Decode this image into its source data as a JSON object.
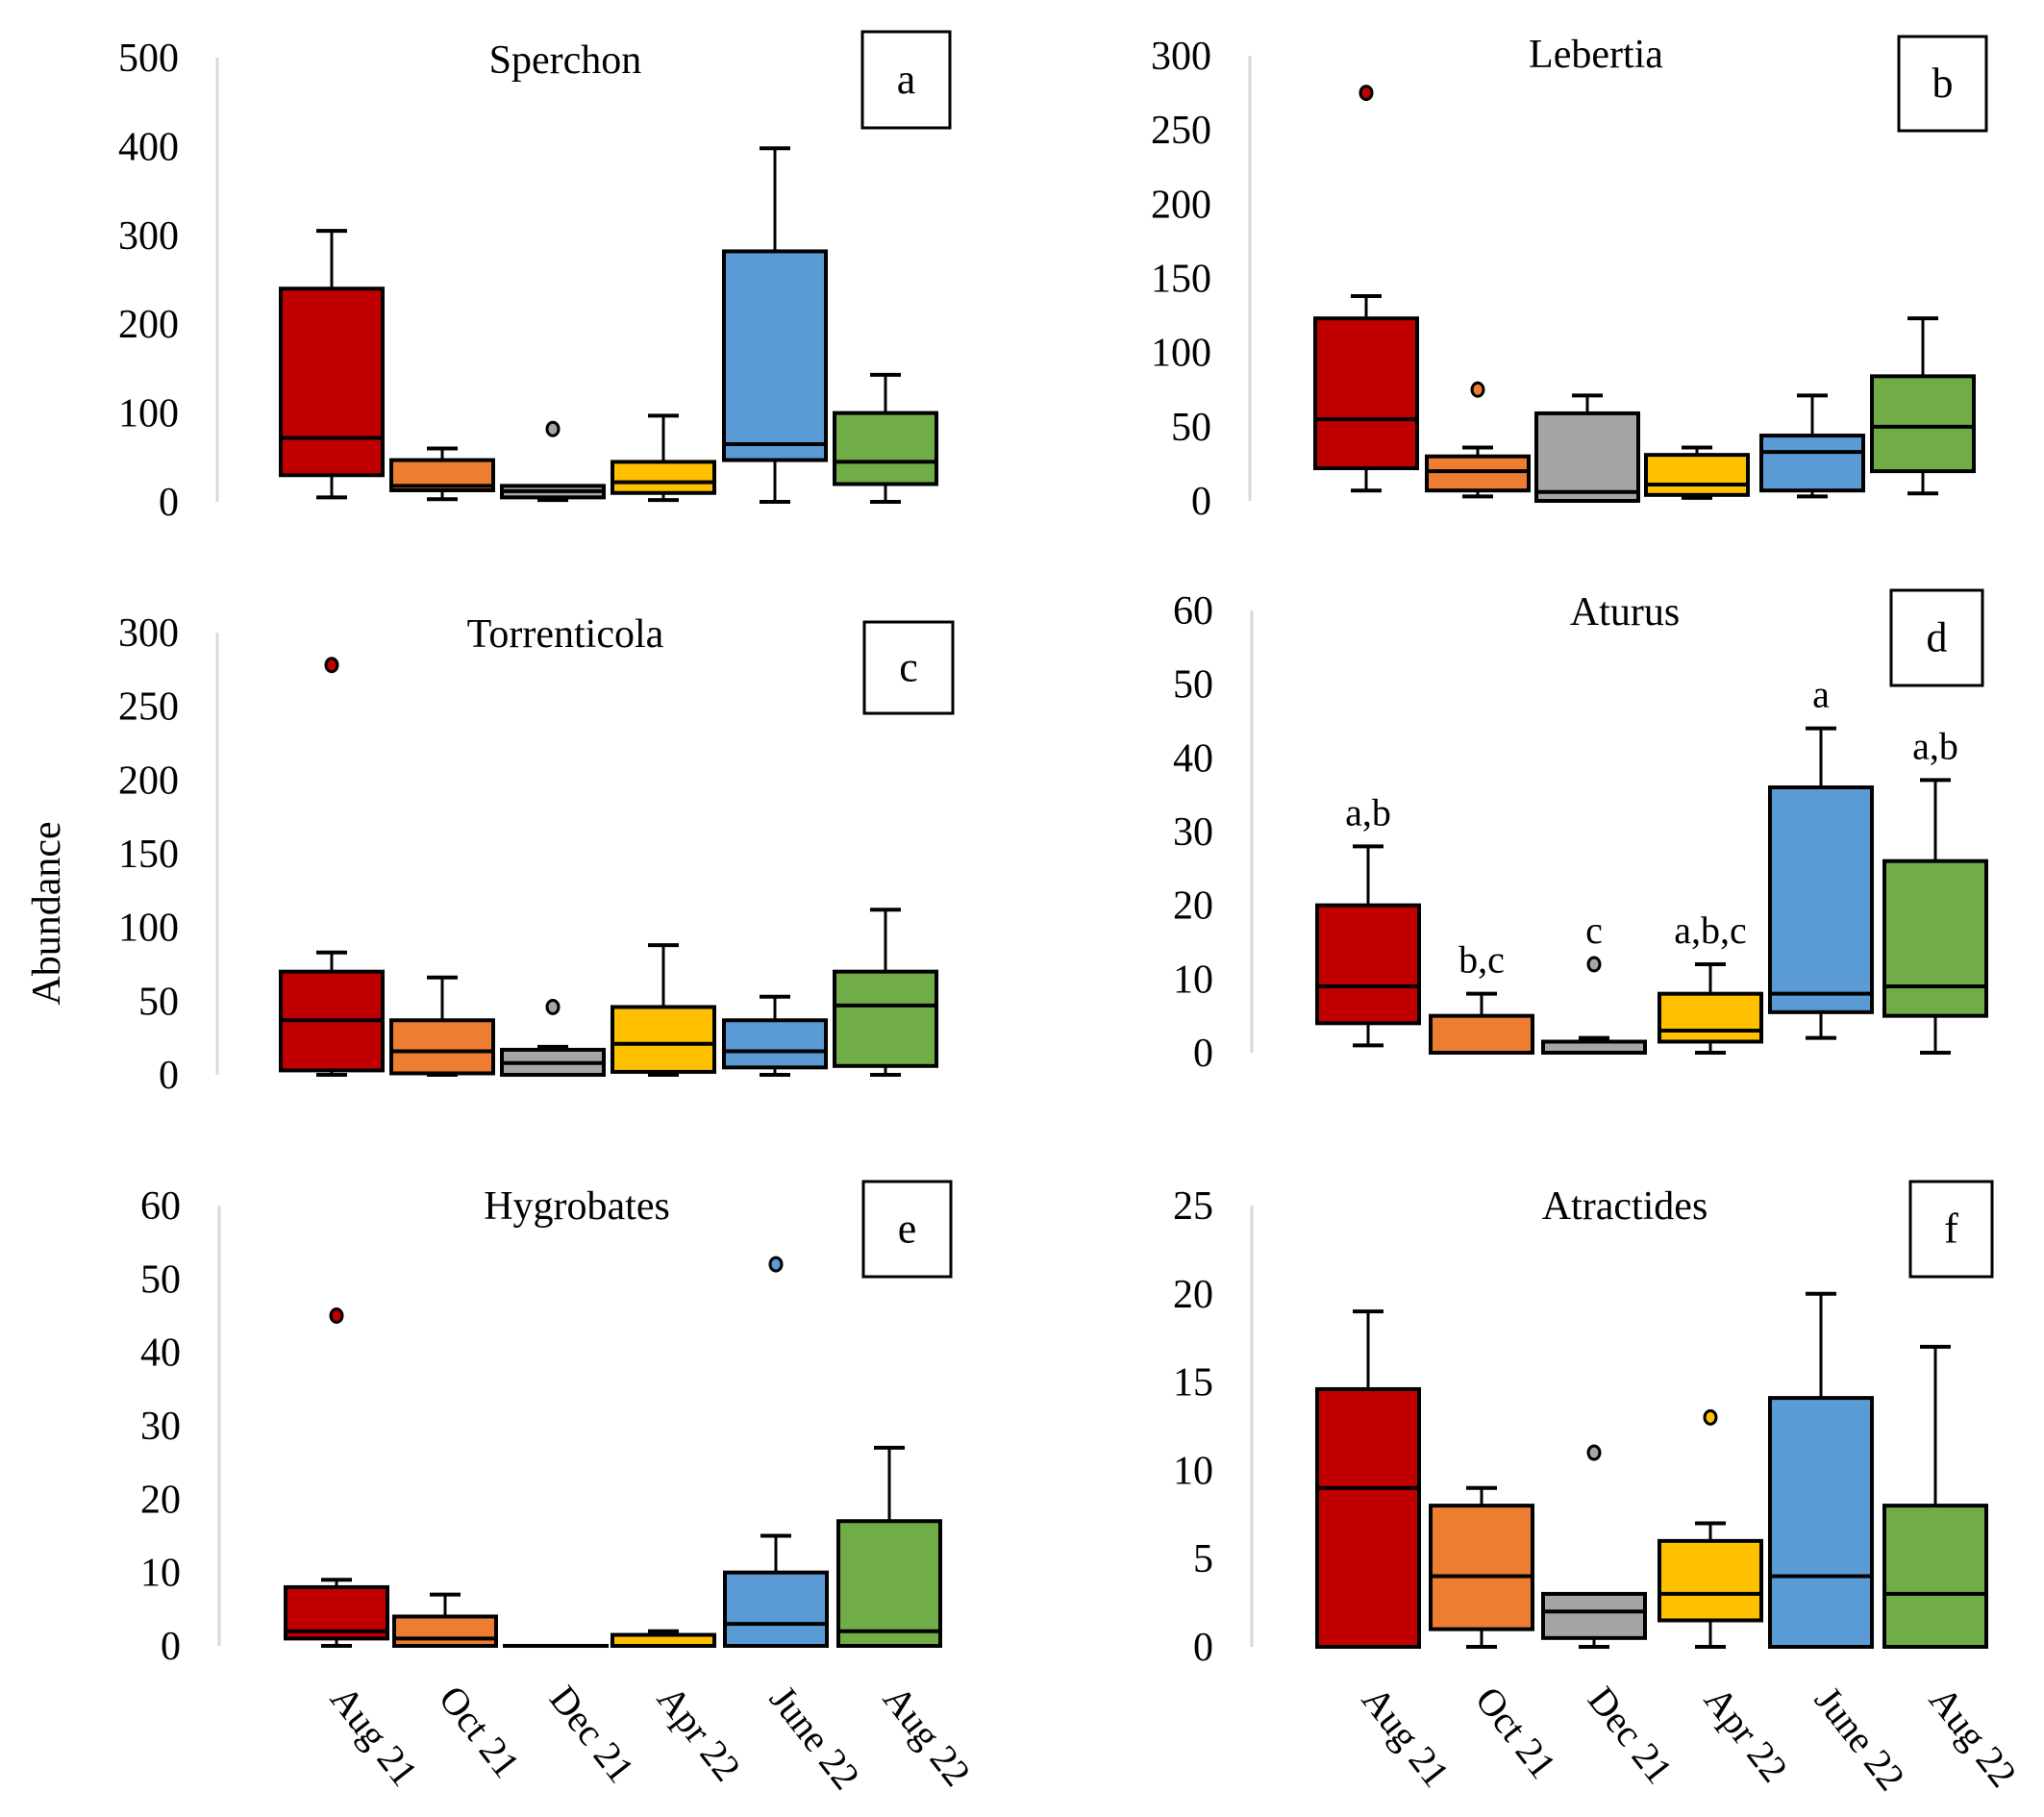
{
  "figure": {
    "ylabel": "Abundance",
    "categories": [
      "Aug 21",
      "Oct 21",
      "Dec 21",
      "Apr 22",
      "June 22",
      "Aug 22"
    ],
    "colors": [
      "#C00000",
      "#ED7D31",
      "#A5A5A5",
      "#FFC000",
      "#5B9BD5",
      "#70AD47"
    ],
    "axis_color": "#D9D9D9"
  },
  "chart_data": [
    {
      "type": "box",
      "panel": "a",
      "title": "Sperchon",
      "ylim": [
        0,
        500
      ],
      "yticks": [
        0,
        100,
        200,
        300,
        400,
        500
      ],
      "categories": [
        "Aug 21",
        "Oct 21",
        "Dec 21",
        "Apr 22",
        "June 22",
        "Aug 22"
      ],
      "boxes": [
        {
          "min": 5,
          "q1": 30,
          "median": 72,
          "q3": 240,
          "max": 305,
          "outliers": []
        },
        {
          "min": 3,
          "q1": 13,
          "median": 18,
          "q3": 47,
          "max": 60,
          "outliers": []
        },
        {
          "min": 2,
          "q1": 5,
          "median": 12,
          "q3": 18,
          "max": 18,
          "outliers": [
            82
          ]
        },
        {
          "min": 2,
          "q1": 10,
          "median": 22,
          "q3": 45,
          "max": 97,
          "outliers": []
        },
        {
          "min": 0,
          "q1": 47,
          "median": 65,
          "q3": 282,
          "max": 398,
          "outliers": []
        },
        {
          "min": 0,
          "q1": 20,
          "median": 45,
          "q3": 100,
          "max": 143,
          "outliers": []
        }
      ],
      "significance": []
    },
    {
      "type": "box",
      "panel": "b",
      "title": "Lebertia",
      "ylim": [
        0,
        300
      ],
      "yticks": [
        0,
        50,
        100,
        150,
        200,
        250,
        300
      ],
      "categories": [
        "Aug 21",
        "Oct 21",
        "Dec 21",
        "Apr 22",
        "June 22",
        "Aug 22"
      ],
      "boxes": [
        {
          "min": 7,
          "q1": 22,
          "median": 55,
          "q3": 123,
          "max": 138,
          "outliers": [
            275
          ]
        },
        {
          "min": 3,
          "q1": 7,
          "median": 20,
          "q3": 30,
          "max": 36,
          "outliers": [
            75
          ]
        },
        {
          "min": 0,
          "q1": 0,
          "median": 6,
          "q3": 59,
          "max": 71,
          "outliers": []
        },
        {
          "min": 2,
          "q1": 4,
          "median": 11,
          "q3": 31,
          "max": 36,
          "outliers": []
        },
        {
          "min": 3,
          "q1": 7,
          "median": 33,
          "q3": 44,
          "max": 71,
          "outliers": []
        },
        {
          "min": 5,
          "q1": 20,
          "median": 50,
          "q3": 84,
          "max": 123,
          "outliers": []
        }
      ],
      "significance": []
    },
    {
      "type": "box",
      "panel": "c",
      "title": "Torrenticola",
      "ylim": [
        0,
        300
      ],
      "yticks": [
        0,
        50,
        100,
        150,
        200,
        250,
        300
      ],
      "categories": [
        "Aug 21",
        "Oct 21",
        "Dec 21",
        "Apr 22",
        "June 22",
        "Aug 22"
      ],
      "boxes": [
        {
          "min": 0,
          "q1": 3,
          "median": 37,
          "q3": 70,
          "max": 83,
          "outliers": [
            278
          ]
        },
        {
          "min": 0,
          "q1": 1,
          "median": 16,
          "q3": 37,
          "max": 66,
          "outliers": []
        },
        {
          "min": 0,
          "q1": 0,
          "median": 8,
          "q3": 17,
          "max": 19,
          "outliers": [
            46
          ]
        },
        {
          "min": 0,
          "q1": 2,
          "median": 21,
          "q3": 46,
          "max": 88,
          "outliers": []
        },
        {
          "min": 0,
          "q1": 5,
          "median": 16,
          "q3": 37,
          "max": 53,
          "outliers": []
        },
        {
          "min": 0,
          "q1": 6,
          "median": 47,
          "q3": 70,
          "max": 112,
          "outliers": []
        }
      ],
      "significance": []
    },
    {
      "type": "box",
      "panel": "d",
      "title": "Aturus",
      "ylim": [
        0,
        60
      ],
      "yticks": [
        0,
        10,
        20,
        30,
        40,
        50,
        60
      ],
      "categories": [
        "Aug 21",
        "Oct 21",
        "Dec 21",
        "Apr 22",
        "June 22",
        "Aug 22"
      ],
      "boxes": [
        {
          "min": 1,
          "q1": 4,
          "median": 9,
          "q3": 20,
          "max": 28,
          "outliers": []
        },
        {
          "min": 0,
          "q1": 0,
          "median": 0,
          "q3": 5,
          "max": 8,
          "outliers": []
        },
        {
          "min": 0,
          "q1": 0,
          "median": 0,
          "q3": 1.5,
          "max": 2,
          "outliers": [
            12
          ]
        },
        {
          "min": 0,
          "q1": 1.5,
          "median": 3,
          "q3": 8,
          "max": 12,
          "outliers": []
        },
        {
          "min": 2,
          "q1": 5.5,
          "median": 8,
          "q3": 36,
          "max": 44,
          "outliers": []
        },
        {
          "min": 0,
          "q1": 5,
          "median": 9,
          "q3": 26,
          "max": 37,
          "outliers": []
        }
      ],
      "significance": [
        "a,b",
        "b,c",
        "c",
        "a,b,c",
        "a",
        "a,b"
      ]
    },
    {
      "type": "box",
      "panel": "e",
      "title": "Hygrobates",
      "ylim": [
        0,
        60
      ],
      "yticks": [
        0,
        10,
        20,
        30,
        40,
        50,
        60
      ],
      "categories": [
        "Aug 21",
        "Oct 21",
        "Dec 21",
        "Apr 22",
        "June 22",
        "Aug 22"
      ],
      "boxes": [
        {
          "min": 0,
          "q1": 1,
          "median": 2,
          "q3": 8,
          "max": 9,
          "outliers": [
            45
          ]
        },
        {
          "min": 0,
          "q1": 0,
          "median": 1,
          "q3": 4,
          "max": 7,
          "outliers": []
        },
        {
          "min": 0,
          "q1": 0,
          "median": 0,
          "q3": 0,
          "max": 0,
          "outliers": []
        },
        {
          "min": 0,
          "q1": 0,
          "median": 0,
          "q3": 1.5,
          "max": 2,
          "outliers": []
        },
        {
          "min": 0,
          "q1": 0,
          "median": 3,
          "q3": 10,
          "max": 15,
          "outliers": [
            52
          ]
        },
        {
          "min": 0,
          "q1": 0,
          "median": 2,
          "q3": 17,
          "max": 27,
          "outliers": []
        }
      ],
      "significance": []
    },
    {
      "type": "box",
      "panel": "f",
      "title": "Atractides",
      "ylim": [
        0,
        25
      ],
      "yticks": [
        0,
        5,
        10,
        15,
        20,
        25
      ],
      "categories": [
        "Aug 21",
        "Oct 21",
        "Dec 21",
        "Apr 22",
        "June 22",
        "Aug 22"
      ],
      "boxes": [
        {
          "min": 0,
          "q1": 0,
          "median": 9,
          "q3": 14.6,
          "max": 19,
          "outliers": []
        },
        {
          "min": 0,
          "q1": 1,
          "median": 4,
          "q3": 8,
          "max": 9,
          "outliers": []
        },
        {
          "min": 0,
          "q1": 0.5,
          "median": 2,
          "q3": 3,
          "max": 3,
          "outliers": [
            11
          ]
        },
        {
          "min": 0,
          "q1": 1.5,
          "median": 3,
          "q3": 6,
          "max": 7,
          "outliers": [
            13
          ]
        },
        {
          "min": 0,
          "q1": 0,
          "median": 4,
          "q3": 14.1,
          "max": 20,
          "outliers": []
        },
        {
          "min": 0,
          "q1": 0,
          "median": 3,
          "q3": 8,
          "max": 17,
          "outliers": []
        }
      ],
      "significance": []
    }
  ]
}
